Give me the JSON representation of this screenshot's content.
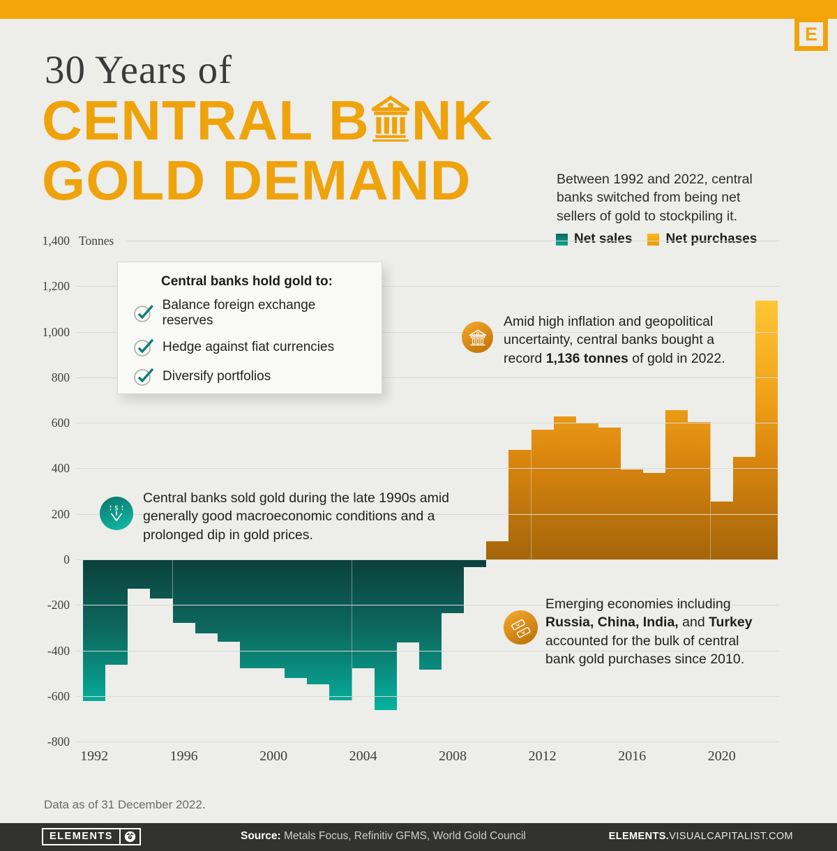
{
  "header": {
    "title_line1": "30 Years of",
    "title_line2_pre": "CENTRAL B",
    "title_line2_post": "NK",
    "title_line3": "GOLD DEMAND",
    "logo_letter": "E",
    "subtitle": "Between 1992 and 2022, central banks switched from being net sellers of gold to stockpiling it."
  },
  "legend": {
    "net_sales_label": "Net sales",
    "net_purchases_label": "Net purchases"
  },
  "callout": {
    "title": "Central banks hold gold to:",
    "items": [
      "Balance foreign exchange reserves",
      "Hedge against fiat currencies",
      "Diversify portfolios"
    ]
  },
  "annotations": {
    "purchases_2022": {
      "icon": "bank-icon",
      "part1": "Amid high inflation and geopolitical uncertainty, central banks bought a record ",
      "bold1": "1,136 tonnes",
      "part2": " of gold in 2022."
    },
    "sales_1990s": {
      "icon": "dollar-down-icon",
      "text": "Central banks sold gold during the late 1990s amid generally good macroeconomic conditions and a prolonged dip in gold prices."
    },
    "emerging": {
      "icon": "gold-bars-icon",
      "part1": "Emerging economies including ",
      "bold1": "Russia, China, India,",
      "part2": " and ",
      "bold2": "Turkey",
      "part3": " accounted for the bulk of central bank gold purchases since 2010."
    }
  },
  "chart_data": {
    "type": "bar",
    "title": "30 Years of Central Bank Gold Demand",
    "unit": "Tonnes",
    "ylabel": "Tonnes",
    "ylim": [
      -800,
      1400
    ],
    "ytick_interval": 200,
    "grid": true,
    "legend_position": "top-right",
    "legend": [
      "Net sales",
      "Net purchases"
    ],
    "series_note": "negative values = net sales (teal), positive values = net purchases (orange)",
    "x": [
      1992,
      1993,
      1994,
      1995,
      1996,
      1997,
      1998,
      1999,
      2000,
      2001,
      2002,
      2003,
      2004,
      2005,
      2006,
      2007,
      2008,
      2009,
      2010,
      2011,
      2012,
      2013,
      2014,
      2015,
      2016,
      2017,
      2018,
      2019,
      2020,
      2021,
      2022
    ],
    "values": [
      -622,
      -464,
      -130,
      -173,
      -279,
      -326,
      -363,
      -477,
      -479,
      -520,
      -547,
      -620,
      -479,
      -663,
      -365,
      -484,
      -235,
      -34,
      79,
      481,
      569,
      629,
      601,
      580,
      395,
      379,
      656,
      605,
      255,
      450,
      1136
    ],
    "xticks": [
      1992,
      1996,
      2000,
      2004,
      2008,
      2012,
      2016,
      2020
    ]
  },
  "colors": {
    "accent_orange": "#F2A30A",
    "teal_dark": "#0C403C",
    "teal_mid": "#0D6A60",
    "teal_bright": "#06B2A0",
    "orange_bright": "#FFC633",
    "orange_mid": "#F0A018",
    "orange_dark": "#A5650A",
    "page_bg": "#EDEDEA",
    "footer_bg": "#323231"
  },
  "footnote": "Data as of 31 December 2022.",
  "footer": {
    "brand": "ELEMENTS",
    "source_label": "Source:",
    "source_text": " Metals Focus, Refinitiv GFMS, World Gold Council",
    "url_bold": "ELEMENTS.",
    "url_rest": "VISUALCAPITALIST.COM"
  }
}
